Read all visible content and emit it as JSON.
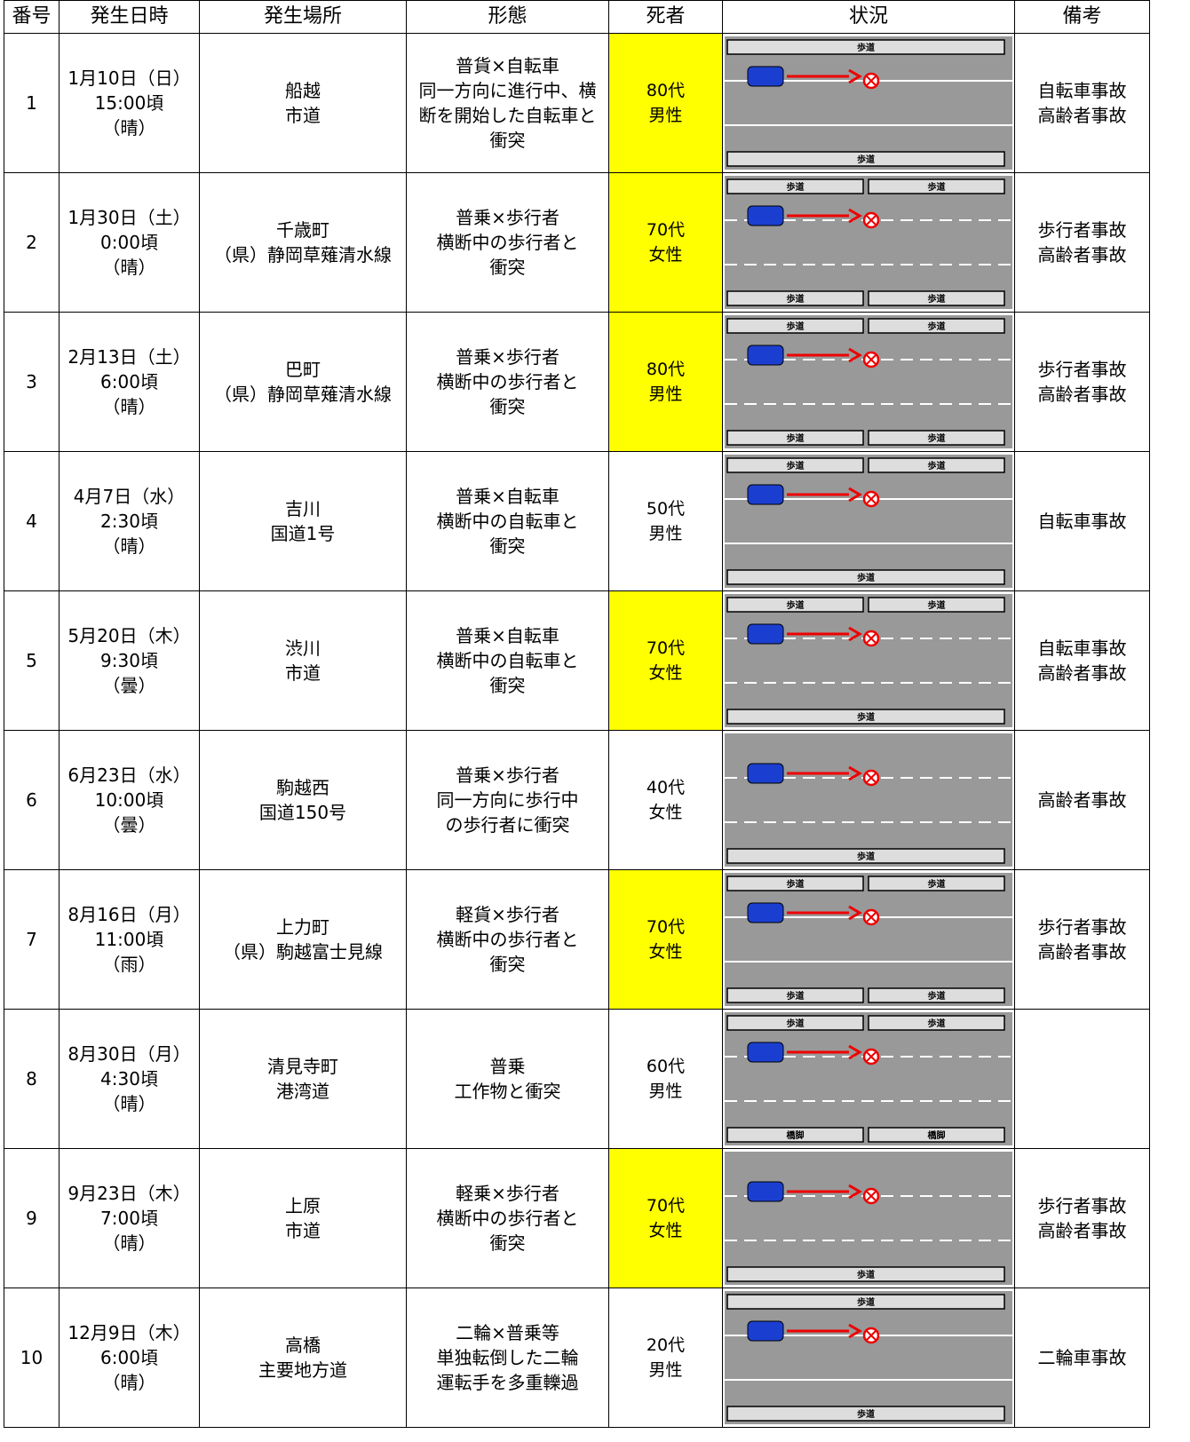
{
  "header": [
    "番号",
    "発生日時",
    "発生場所",
    "形態",
    "死者",
    "状況",
    "備考"
  ],
  "rows": [
    {
      "number": "1",
      "datetime": [
        "1月10日（日）",
        "15:00頃",
        "（晴）"
      ],
      "location": [
        "船越",
        "市道"
      ],
      "type": [
        "普貨×自転車",
        "同一方向に進行中、横",
        "断を開始した自転車と",
        "衝突"
      ],
      "victim": [
        "80代",
        "男性"
      ],
      "highlight": true,
      "diagram_labels": [
        "歩道",
        "歩道"
      ],
      "remarks": [
        "自転車事故",
        "高齢者事故"
      ]
    },
    {
      "number": "2",
      "datetime": [
        "1月30日（土）",
        "0:00頃",
        "（晴）"
      ],
      "location": [
        "千歳町",
        "（県）静岡草薙清水線"
      ],
      "type": [
        "普乗×歩行者",
        "横断中の歩行者と",
        "衝突"
      ],
      "victim": [
        "70代",
        "女性"
      ],
      "highlight": true,
      "diagram_labels": [
        "歩道",
        "歩道",
        "歩道",
        "歩道"
      ],
      "remarks": [
        "歩行者事故",
        "高齢者事故"
      ]
    },
    {
      "number": "3",
      "datetime": [
        "2月13日（土）",
        "6:00頃",
        "（晴）"
      ],
      "location": [
        "巴町",
        "（県）静岡草薙清水線"
      ],
      "type": [
        "普乗×歩行者",
        "横断中の歩行者と",
        "衝突"
      ],
      "victim": [
        "80代",
        "男性"
      ],
      "highlight": true,
      "diagram_labels": [
        "歩道",
        "歩道",
        "歩道",
        "歩道"
      ],
      "remarks": [
        "歩行者事故",
        "高齢者事故"
      ]
    },
    {
      "number": "4",
      "datetime": [
        "4月7日（水）",
        "2:30頃",
        "（晴）"
      ],
      "location": [
        "吉川",
        "国道1号"
      ],
      "type": [
        "普乗×自転車",
        "横断中の自転車と",
        "衝突"
      ],
      "victim": [
        "50代",
        "男性"
      ],
      "highlight": false,
      "diagram_labels": [
        "歩道",
        "歩道",
        "歩道"
      ],
      "remarks": [
        "自転車事故"
      ]
    },
    {
      "number": "5",
      "datetime": [
        "5月20日（木）",
        "9:30頃",
        "（曇）"
      ],
      "location": [
        "渋川",
        "市道"
      ],
      "type": [
        "普乗×自転車",
        "横断中の自転車と",
        "衝突"
      ],
      "victim": [
        "70代",
        "女性"
      ],
      "highlight": true,
      "diagram_labels": [
        "歩道",
        "歩道",
        "歩道"
      ],
      "remarks": [
        "自転車事故",
        "高齢者事故"
      ]
    },
    {
      "number": "6",
      "datetime": [
        "6月23日（水）",
        "10:00頃",
        "（曇）"
      ],
      "location": [
        "駒越西",
        "国道150号"
      ],
      "type": [
        "普乗×歩行者",
        "同一方向に歩行中",
        "の歩行者に衝突"
      ],
      "victim": [
        "40代",
        "女性"
      ],
      "highlight": false,
      "diagram_labels": [
        "歩道"
      ],
      "remarks": [
        "高齢者事故"
      ]
    },
    {
      "number": "7",
      "datetime": [
        "8月16日（月）",
        "11:00頃",
        "（雨）"
      ],
      "location": [
        "上力町",
        "（県）駒越富士見線"
      ],
      "type": [
        "軽貨×歩行者",
        "横断中の歩行者と",
        "衝突"
      ],
      "victim": [
        "70代",
        "女性"
      ],
      "highlight": true,
      "diagram_labels": [
        "歩道",
        "歩道",
        "歩道",
        "歩道"
      ],
      "remarks": [
        "歩行者事故",
        "高齢者事故"
      ]
    },
    {
      "number": "8",
      "datetime": [
        "8月30日（月）",
        "4:30頃",
        "（晴）"
      ],
      "location": [
        "清見寺町",
        "港湾道"
      ],
      "type": [
        "普乗",
        "工作物と衝突"
      ],
      "victim": [
        "60代",
        "男性"
      ],
      "highlight": false,
      "diagram_labels": [
        "歩道",
        "歩道",
        "橋脚",
        "橋脚"
      ],
      "remarks": []
    },
    {
      "number": "9",
      "datetime": [
        "9月23日（木）",
        "7:00頃",
        "（晴）"
      ],
      "location": [
        "上原",
        "市道"
      ],
      "type": [
        "軽乗×歩行者",
        "横断中の歩行者と",
        "衝突"
      ],
      "victim": [
        "70代",
        "女性"
      ],
      "highlight": true,
      "diagram_labels": [
        "歩道"
      ],
      "remarks": [
        "歩行者事故",
        "高齢者事故"
      ]
    },
    {
      "number": "10",
      "datetime": [
        "12月9日（木）",
        "6:00頃",
        "（晴）"
      ],
      "location": [
        "高橋",
        "主要地方道"
      ],
      "type": [
        "二輪×普乗等",
        "単独転倒した二輪",
        "運転手を多重轢過"
      ],
      "victim": [
        "20代",
        "男性"
      ],
      "highlight": false,
      "diagram_labels": [
        "歩道",
        "歩道"
      ],
      "remarks": [
        "二輪車事故"
      ]
    }
  ]
}
